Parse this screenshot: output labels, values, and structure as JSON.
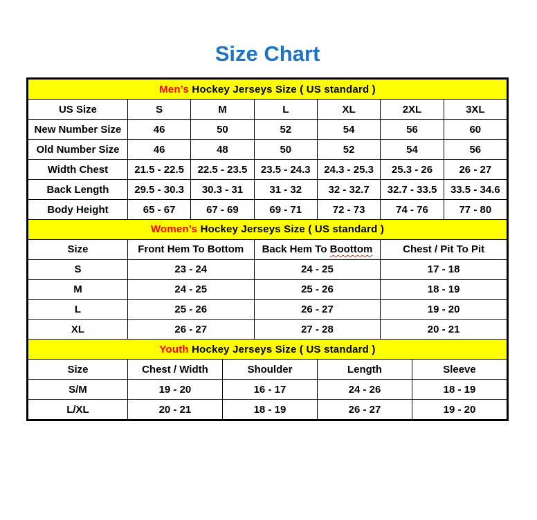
{
  "title": "Size Chart",
  "colors": {
    "title_blue": "#1B74C5",
    "section_highlight_red": "#FF0000",
    "band_yellow": "#FFFF00",
    "spellcheck_wavy_red": "#E0301E"
  },
  "sections": [
    {
      "id": "mens",
      "band": {
        "highlight": "Men’s",
        "rest": " Hockey Jerseys Size ( US standard )"
      },
      "columns": [
        "US Size",
        "S",
        "M",
        "L",
        "XL",
        "2XL",
        "3XL"
      ],
      "rows": [
        [
          "New Number Size",
          "46",
          "50",
          "52",
          "54",
          "56",
          "60"
        ],
        [
          "Old Number Size",
          "46",
          "48",
          "50",
          "52",
          "54",
          "56"
        ],
        [
          "Width Chest",
          "21.5 - 22.5",
          "22.5 - 23.5",
          "23.5 - 24.3",
          "24.3 - 25.3",
          "25.3 - 26",
          "26 - 27"
        ],
        [
          "Back Length",
          "29.5 - 30.3",
          "30.3 - 31",
          "31 - 32",
          "32 - 32.7",
          "32.7 - 33.5",
          "33.5 - 34.6"
        ],
        [
          "Body Height",
          "65 - 67",
          "67 - 69",
          "69 - 71",
          "72 - 73",
          "74 - 76",
          "77 - 80"
        ]
      ]
    },
    {
      "id": "womens",
      "band": {
        "highlight": "Women’s",
        "rest": " Hockey Jerseys Size ( US standard )"
      },
      "columns": [
        "Size",
        "Front Hem To Bottom",
        {
          "prefix": "Back Hem To ",
          "wavy": "Boottom"
        },
        "Chest / Pit To Pit"
      ],
      "rows": [
        [
          "S",
          "23 - 24",
          "24 - 25",
          "17 - 18"
        ],
        [
          "M",
          "24 - 25",
          "25 - 26",
          "18 - 19"
        ],
        [
          "L",
          "25 - 26",
          "26 - 27",
          "19 - 20"
        ],
        [
          "XL",
          "26 - 27",
          "27 - 28",
          "20 - 21"
        ]
      ]
    },
    {
      "id": "youth",
      "band": {
        "highlight": "Youth",
        "rest": " Hockey Jerseys Size ( US standard )"
      },
      "columns": [
        "Size",
        "Chest / Width",
        "Shoulder",
        "Length",
        "Sleeve"
      ],
      "rows": [
        [
          "S/M",
          "19 - 20",
          "16 - 17",
          "24 - 26",
          "18 - 19"
        ],
        [
          "L/XL",
          "20 - 21",
          "18 - 19",
          "26 - 27",
          "19 - 20"
        ]
      ]
    }
  ]
}
